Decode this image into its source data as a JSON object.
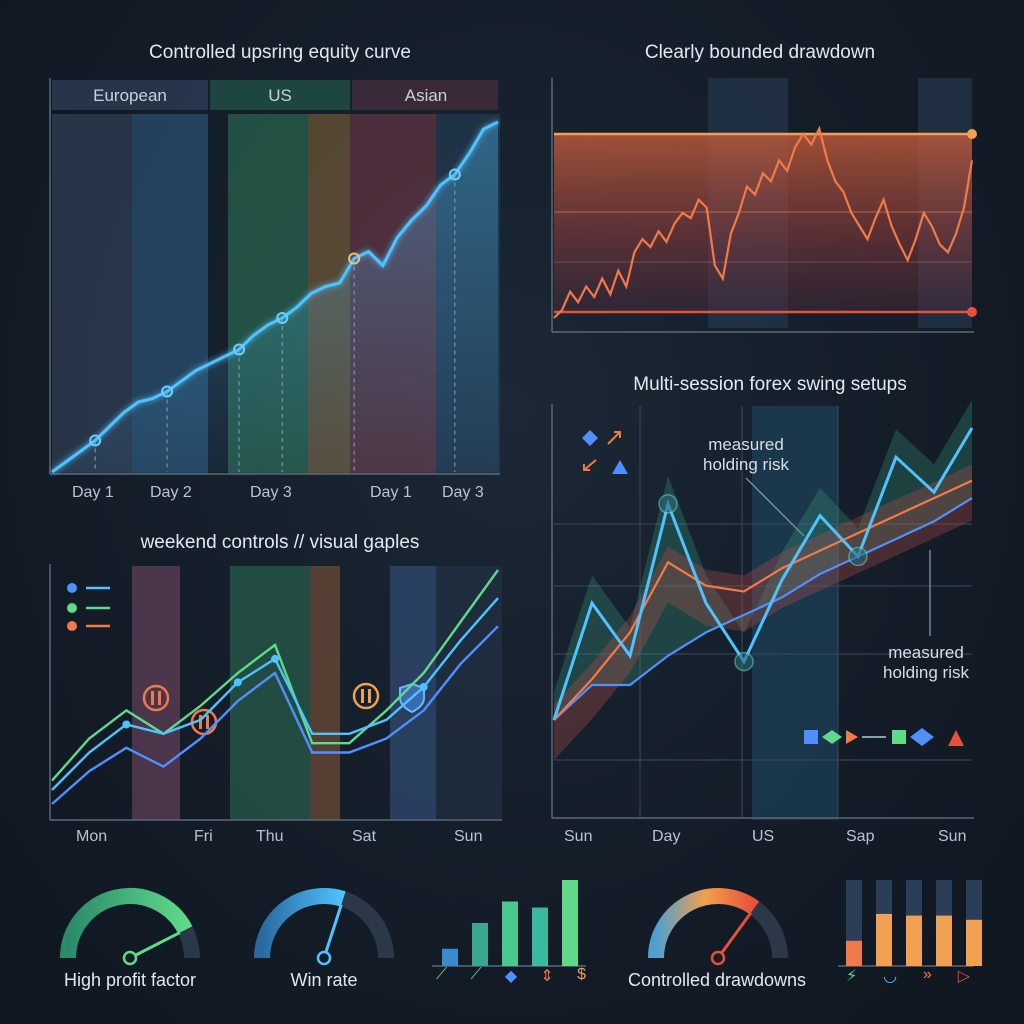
{
  "panels": {
    "equity": {
      "title": "Controlled upsring equity curve",
      "sessions": [
        "European",
        "US",
        "Asian"
      ],
      "x_ticks": [
        "Day 1",
        "Day 2",
        "Day 3",
        "Day 1",
        "Day 3"
      ]
    },
    "drawdown": {
      "title": "Clearly bounded drawdown"
    },
    "weekend": {
      "title": "weekend controls // visual gaples",
      "x_ticks": [
        "Mon",
        "Fri",
        "Thu",
        "Sat",
        "Sun"
      ]
    },
    "swing": {
      "title": "Multi-session forex swing setups",
      "annotation_top": "measured\nholding risk",
      "annotation_right": "measured\nholding risk",
      "x_ticks": [
        "Sun",
        "Day",
        "US",
        "Sap",
        "Sun"
      ]
    }
  },
  "gauges": [
    {
      "label": "High profit factor",
      "level": 0.85
    },
    {
      "label": "Win rate",
      "level": 0.6
    },
    {
      "label": "Controlled drawdowns",
      "level": 0.7
    }
  ],
  "bottom_bar_glyphs": [
    "⟋",
    "⟋",
    "◆",
    "⇕",
    "$"
  ],
  "bottom_right_glyphs": [
    "⚡",
    "◡",
    "»",
    "▷"
  ],
  "colors": {
    "blue": "#4fc3ff",
    "green": "#5fd98a",
    "orange": "#f07a4a",
    "red": "#e8503a",
    "panel_line": "#5a6878"
  },
  "chart_data": [
    {
      "type": "line",
      "title": "Controlled upsring equity curve",
      "x_tick_labels": [
        "Day 1",
        "Day 2",
        "Day 3",
        "Day 1",
        "Day 3"
      ],
      "bands": [
        "European",
        "US",
        "Asian"
      ],
      "series": [
        {
          "values": [
            0,
            3,
            6,
            9,
            13,
            17,
            20,
            21,
            23,
            26,
            29,
            31,
            33,
            35,
            39,
            42,
            44,
            47,
            51,
            53,
            54,
            61,
            63,
            59,
            67,
            72,
            76,
            82,
            85,
            91,
            98,
            100
          ]
        }
      ],
      "ylim": [
        0,
        100
      ]
    },
    {
      "type": "line",
      "title": "Clearly bounded drawdown",
      "series": [
        {
          "values": [
            0,
            -3,
            -10,
            -6,
            -12,
            -8,
            -15,
            -9,
            -18,
            -12,
            -25,
            -30,
            -27,
            -33,
            -29,
            -36,
            -40,
            -38,
            -45,
            -42,
            -20,
            -15,
            -32,
            -40,
            -50,
            -47,
            -55,
            -52,
            -60,
            -56,
            -65,
            -70,
            -66,
            -72,
            -60,
            -52,
            -48,
            -40,
            -35,
            -30,
            -38,
            -45,
            -35,
            -28,
            -22,
            -30,
            -40,
            -35,
            -28,
            -25,
            -32,
            -42,
            -60
          ]
        }
      ],
      "ylim": [
        -70,
        0
      ]
    },
    {
      "type": "line",
      "title": "weekend controls // visual gaples",
      "x_tick_labels": [
        "Mon",
        "Fri",
        "Thu",
        "Sat",
        "Sun"
      ],
      "series": [
        {
          "values": [
            10,
            28,
            40,
            30,
            42,
            56,
            68,
            26,
            26,
            40,
            56,
            78,
            100
          ]
        },
        {
          "values": [
            6,
            22,
            34,
            30,
            36,
            52,
            62,
            30,
            30,
            36,
            50,
            70,
            88
          ]
        },
        {
          "values": [
            0,
            14,
            24,
            16,
            28,
            44,
            56,
            22,
            22,
            28,
            40,
            60,
            76
          ]
        }
      ],
      "ylim": [
        0,
        100
      ]
    },
    {
      "type": "line",
      "title": "Multi-session forex swing setups",
      "x_tick_labels": [
        "Sun",
        "Day",
        "US",
        "Sap",
        "Sun"
      ],
      "series": [
        {
          "values": [
            0,
            40,
            22,
            74,
            40,
            20,
            48,
            70,
            56,
            90,
            78,
            100
          ]
        },
        {
          "values": [
            0,
            14,
            30,
            54,
            46,
            44,
            52,
            58,
            64,
            70,
            76,
            82
          ]
        },
        {
          "values": [
            0,
            12,
            12,
            22,
            30,
            36,
            42,
            50,
            56,
            62,
            68,
            76
          ]
        }
      ],
      "ylim": [
        0,
        100
      ]
    },
    {
      "type": "bar",
      "values": [
        20,
        50,
        75,
        68,
        100
      ]
    },
    {
      "type": "bar",
      "values": [
        30,
        62,
        60,
        60,
        55
      ]
    }
  ]
}
